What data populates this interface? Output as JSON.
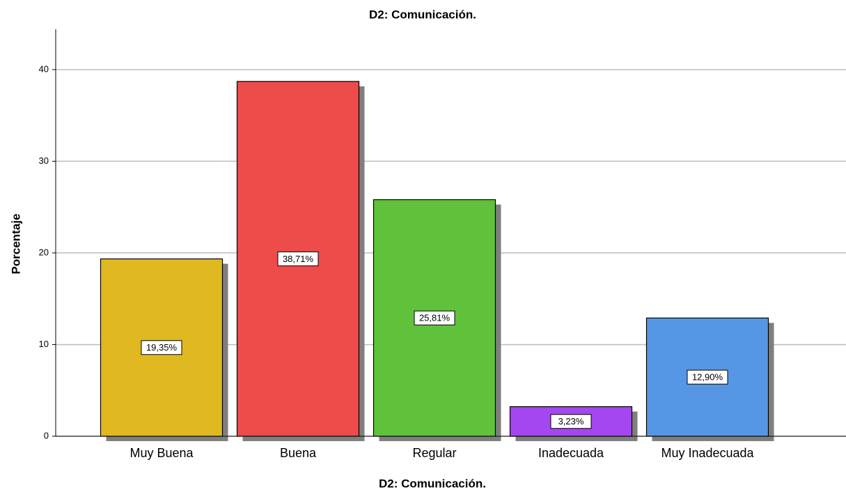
{
  "chart_data": {
    "type": "bar",
    "title": "D2: Comunicación.",
    "x_label": "D2: Comunicación.",
    "y_label": "Porcentaje",
    "categories": [
      "Muy Buena",
      "Buena",
      "Regular",
      "Inadecuada",
      "Muy Inadecuada"
    ],
    "values": [
      19.35,
      38.71,
      25.81,
      3.23,
      12.9
    ],
    "value_labels": [
      "19,35%",
      "38,71%",
      "25,81%",
      "3,23%",
      "12,90%"
    ],
    "colors": [
      "#e0b81f",
      "#ee4b4b",
      "#5fc23a",
      "#a447f0",
      "#5597e4"
    ],
    "ylim": [
      0,
      44.4
    ],
    "yticks": [
      0,
      10,
      20,
      30,
      40
    ],
    "grid": true
  }
}
